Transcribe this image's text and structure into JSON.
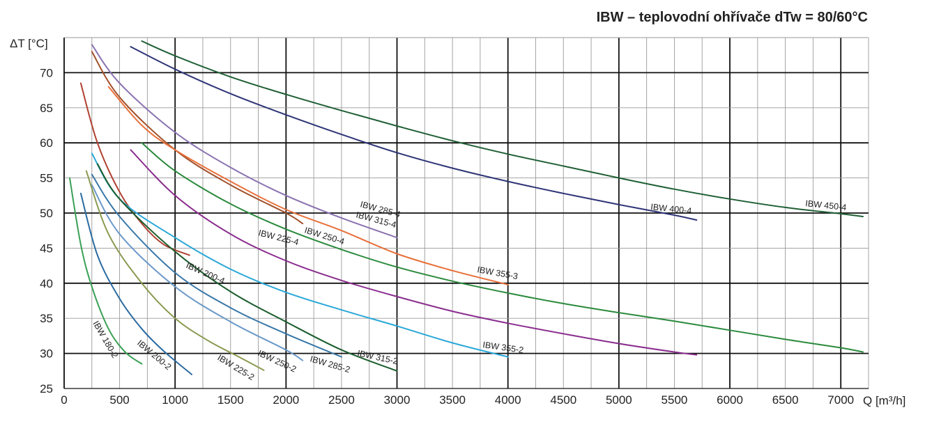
{
  "chart_data": {
    "type": "line",
    "title": "IBW – teplovodní ohřívače dTw = 80/60°C",
    "xlabel": "Q [m³/h]",
    "ylabel": "ΔT [°C]",
    "xlim": [
      0,
      7250
    ],
    "ylim": [
      25,
      75
    ],
    "xticks": [
      0,
      500,
      1000,
      1500,
      2000,
      2500,
      3000,
      3500,
      4000,
      4500,
      5000,
      5500,
      6000,
      6500,
      7000
    ],
    "yticks": [
      25,
      30,
      35,
      40,
      45,
      50,
      55,
      60,
      65,
      70
    ],
    "grid": true,
    "legend": "none",
    "series": [
      {
        "name": "IBW 450-4",
        "color": "#1f5f35",
        "x": [
          700,
          1000,
          1500,
          2000,
          2500,
          3000,
          3500,
          4000,
          4500,
          5000,
          5500,
          6000,
          6500,
          7000,
          7200
        ],
        "y": [
          74.5,
          72.4,
          69.4,
          66.9,
          64.6,
          62.4,
          60.3,
          58.4,
          56.7,
          55.0,
          53.4,
          52.0,
          50.8,
          49.9,
          49.5
        ]
      },
      {
        "name": "IBW 400-4",
        "color": "#2e3476",
        "x": [
          600,
          1000,
          1500,
          2000,
          2500,
          3000,
          3500,
          4000,
          4500,
          5000,
          5500,
          5700
        ],
        "y": [
          73.7,
          70.5,
          67.0,
          64.0,
          61.2,
          58.6,
          56.4,
          54.5,
          52.8,
          51.2,
          49.7,
          49.0
        ]
      },
      {
        "name": "IBW 285-4",
        "color": "#8a72b0",
        "x": [
          250,
          500,
          1000,
          1500,
          2000,
          2500,
          3000
        ],
        "y": [
          74.0,
          68.5,
          61.5,
          56.5,
          52.5,
          49.3,
          46.5
        ]
      },
      {
        "name": "IBW 315-4",
        "color": "#a0502a",
        "x": [
          250,
          500,
          1000,
          1500,
          2000,
          2150
        ],
        "y": [
          73.0,
          66.5,
          59.0,
          54.0,
          50.0,
          48.5
        ]
      },
      {
        "name": "IBW 355-3",
        "color": "#e8703a",
        "x": [
          400,
          700,
          1000,
          1500,
          2000,
          2500,
          3000,
          3500,
          4000
        ],
        "y": [
          68.0,
          62.5,
          59.0,
          54.5,
          50.5,
          47.5,
          44.2,
          41.8,
          39.8
        ]
      },
      {
        "name": "IBW 250-4",
        "color": "#2a8a3c",
        "x": [
          700,
          1000,
          1500,
          2000,
          2500,
          3000,
          3500,
          4000,
          4500,
          5000,
          5500,
          6000,
          6500,
          7000,
          7200
        ],
        "y": [
          60.0,
          56.0,
          51.3,
          47.7,
          44.8,
          42.3,
          40.3,
          38.6,
          37.1,
          35.8,
          34.6,
          33.3,
          32.0,
          30.8,
          30.2
        ]
      },
      {
        "name": "IBW 225-4",
        "color": "#8a2d8e",
        "x": [
          600,
          1000,
          1500,
          2000,
          2500,
          3000,
          3500,
          4000,
          4500,
          5000,
          5500,
          5700
        ],
        "y": [
          59.0,
          52.5,
          47.0,
          43.2,
          40.4,
          38.1,
          36.0,
          34.3,
          32.8,
          31.4,
          30.2,
          29.8
        ]
      },
      {
        "name": "IBW 200-4",
        "color": "#b04030",
        "x": [
          150,
          300,
          500,
          700,
          900,
          1130
        ],
        "y": [
          68.5,
          60.0,
          53.0,
          48.5,
          45.5,
          44.0
        ]
      },
      {
        "name": "IBW 355-2",
        "color": "#2aa8d8",
        "x": [
          250,
          500,
          1000,
          1500,
          2000,
          2500,
          3000,
          3500,
          4000
        ],
        "y": [
          58.5,
          52.0,
          46.5,
          42.0,
          38.7,
          36.2,
          33.9,
          31.5,
          29.5
        ]
      },
      {
        "name": "IBW 315-2",
        "color": "#1a5c2c",
        "x": [
          300,
          500,
          1000,
          1500,
          2000,
          2500,
          3000
        ],
        "y": [
          57.0,
          52.0,
          44.5,
          38.8,
          34.5,
          30.5,
          27.5
        ]
      },
      {
        "name": "IBW 285-2",
        "color": "#3a78a8",
        "x": [
          250,
          500,
          1000,
          1500,
          2000,
          2500
        ],
        "y": [
          55.5,
          49.5,
          41.5,
          36.5,
          32.8,
          29.5
        ]
      },
      {
        "name": "IBW 250-2",
        "color": "#6a98c8",
        "x": [
          250,
          500,
          1000,
          1500,
          2000,
          2150
        ],
        "y": [
          54.0,
          47.0,
          39.5,
          34.5,
          30.5,
          29.0
        ]
      },
      {
        "name": "IBW 225-2",
        "color": "#8a9a50",
        "x": [
          200,
          400,
          700,
          1000,
          1300,
          1600,
          1800
        ],
        "y": [
          56.0,
          47.0,
          40.0,
          35.0,
          31.8,
          29.3,
          27.6
        ]
      },
      {
        "name": "IBW 200-2",
        "color": "#2a6aa0",
        "x": [
          150,
          300,
          500,
          700,
          900,
          1150
        ],
        "y": [
          52.8,
          44.0,
          37.8,
          33.5,
          30.3,
          27.0
        ]
      },
      {
        "name": "IBW 180-2",
        "color": "#3aa055",
        "x": [
          50,
          150,
          250,
          400,
          550,
          700
        ],
        "y": [
          55.0,
          45.5,
          39.5,
          33.5,
          30.2,
          28.5
        ]
      }
    ]
  }
}
